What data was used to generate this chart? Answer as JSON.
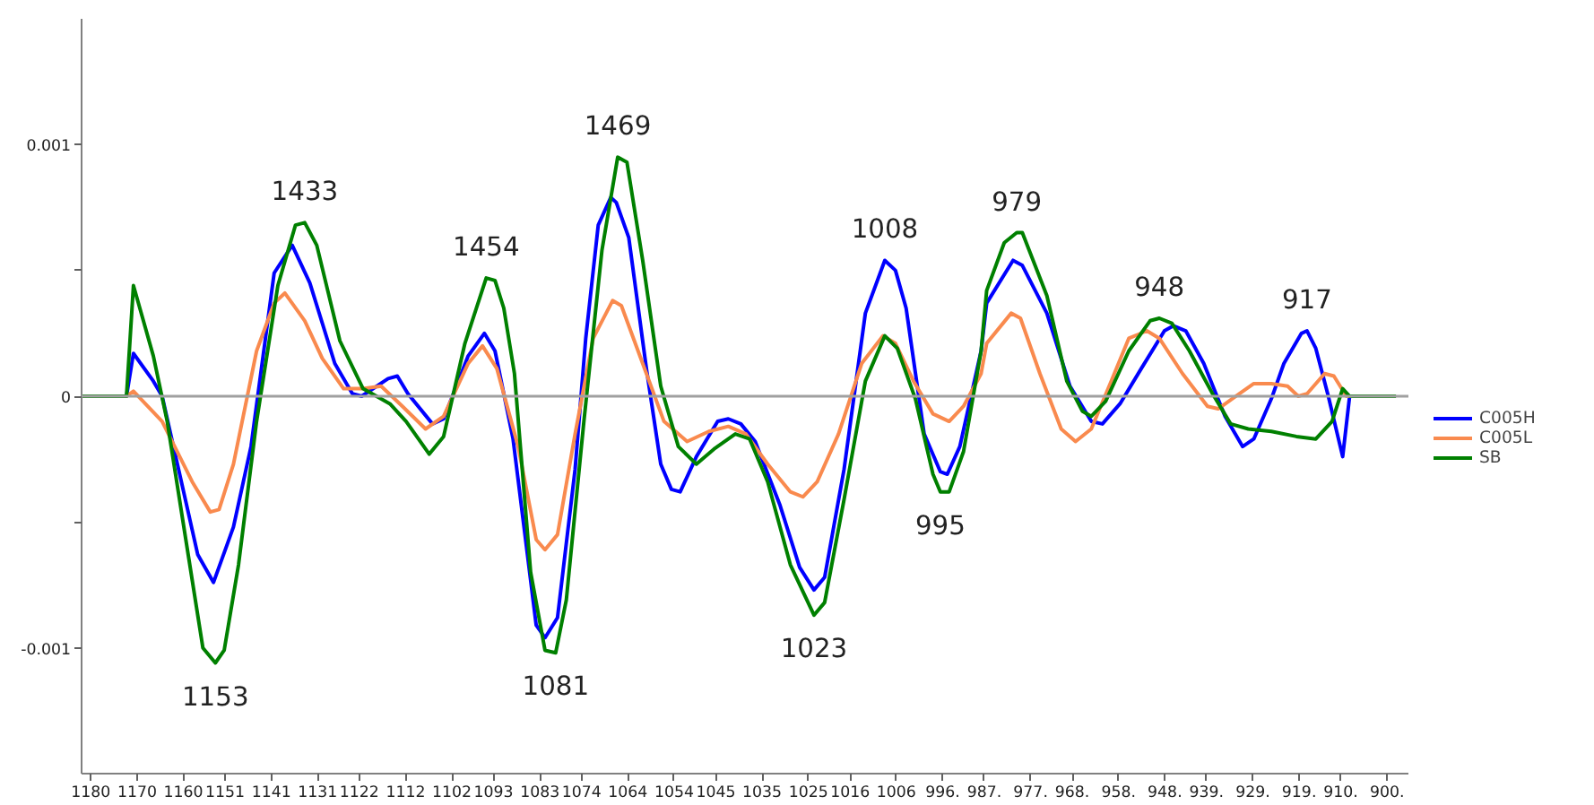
{
  "chart_data": {
    "type": "line",
    "xlim": [
      1182,
      895.4
    ],
    "ylim": [
      -0.0015,
      0.0015
    ],
    "xticks": [
      1180,
      1170,
      1160,
      1151,
      1141,
      1131,
      1122,
      1112,
      1102,
      1093,
      1083,
      1074,
      1064,
      1054,
      1045,
      1035,
      1025,
      1016,
      1006,
      {
        "value": 996,
        "label": "996."
      },
      {
        "value": 987,
        "label": "987."
      },
      {
        "value": 977,
        "label": "977."
      },
      {
        "value": 968,
        "label": "968."
      },
      {
        "value": 958,
        "label": "958."
      },
      {
        "value": 948,
        "label": "948."
      },
      {
        "value": 939,
        "label": "939."
      },
      {
        "value": 929,
        "label": "929."
      },
      {
        "value": 919,
        "label": "919."
      },
      {
        "value": 910,
        "label": "910."
      },
      {
        "value": 900,
        "label": "900."
      }
    ],
    "yticks": [
      -0.001,
      {
        "value": -0.0005,
        "label": null
      },
      0,
      {
        "value": 0.0005,
        "label": null
      },
      0.001
    ],
    "grid": false,
    "legend": "right",
    "marker": "none",
    "line_style": "solid",
    "ref_lines": [
      {
        "axis": "y",
        "value": 0,
        "color": "#a0a0a0"
      }
    ],
    "annotations": [
      {
        "text": "1433",
        "x": 1133.8,
        "y": 0.00069
      },
      {
        "text": "1153",
        "x": 1153.1,
        "y": -0.00106
      },
      {
        "text": "1454",
        "x": 1094.6,
        "y": 0.00047
      },
      {
        "text": "1081",
        "x": 1079.6,
        "y": -0.00102
      },
      {
        "text": "1469",
        "x": 1066.2,
        "y": 0.00095
      },
      {
        "text": "1023",
        "x": 1023.8,
        "y": -0.00087
      },
      {
        "text": "1008",
        "x": 1008.5,
        "y": 0.00054
      },
      {
        "text": "995",
        "x": 996.5,
        "y": -0.00038
      },
      {
        "text": "979",
        "x": 980.0,
        "y": 0.00065
      },
      {
        "text": "948",
        "x": 949.2,
        "y": 0.00031
      },
      {
        "text": "917",
        "x": 917.3,
        "y": 0.00026
      }
    ],
    "series": [
      {
        "name": "C005H",
        "color": "#0000ff",
        "x": [
          1181.9,
          1172.3,
          1170.8,
          1166.5,
          1164.6,
          1156.9,
          1153.5,
          1149.2,
          1145.4,
          1140.4,
          1136.5,
          1132.7,
          1127.3,
          1123.5,
          1121.5,
          1115.8,
          1113.8,
          1111.5,
          1106.2,
          1103.8,
          1098.5,
          1095.0,
          1092.7,
          1088.8,
          1083.8,
          1081.9,
          1079.2,
          1075.4,
          1073.1,
          1070.4,
          1067.7,
          1066.5,
          1063.8,
          1060.0,
          1056.9,
          1054.6,
          1052.7,
          1049.2,
          1044.6,
          1042.3,
          1039.6,
          1036.5,
          1031.2,
          1026.9,
          1023.8,
          1021.5,
          1017.3,
          1012.7,
          1008.5,
          1006.2,
          1003.9,
          1000.0,
          996.5,
          995.0,
          992.3,
          987.7,
          986.5,
          980.8,
          978.8,
          973.5,
          968.5,
          963.9,
          961.5,
          957.7,
          953.1,
          948.1,
          946.2,
          943.5,
          939.6,
          935.0,
          931.2,
          928.8,
          925.0,
          922.3,
          918.5,
          917.3,
          915.4,
          912.7,
          909.6,
          908.1,
          898.1
        ],
        "values": [
          0,
          0,
          0.00017,
          6e-05,
          0,
          -0.00063,
          -0.00074,
          -0.00052,
          -0.0002,
          0.00049,
          0.0006,
          0.00045,
          0.00013,
          1e-05,
          0,
          7e-05,
          8e-05,
          1e-05,
          -0.00011,
          -9e-05,
          0.00016,
          0.00025,
          0.00018,
          -0.00017,
          -0.00091,
          -0.00096,
          -0.00088,
          -0.00029,
          0.00023,
          0.00068,
          0.00079,
          0.00077,
          0.00063,
          0.00011,
          -0.00027,
          -0.00037,
          -0.00038,
          -0.00024,
          -0.0001,
          -9e-05,
          -0.00011,
          -0.00018,
          -0.00043,
          -0.00068,
          -0.00077,
          -0.00072,
          -0.00029,
          0.00033,
          0.00054,
          0.0005,
          0.00035,
          -0.00015,
          -0.0003,
          -0.00031,
          -0.0002,
          0.00018,
          0.00037,
          0.00054,
          0.00052,
          0.00033,
          4e-05,
          -0.0001,
          -0.00011,
          -3e-05,
          0.00011,
          0.00026,
          0.00028,
          0.00026,
          0.00013,
          -8e-05,
          -0.0002,
          -0.00017,
          -1e-05,
          0.00013,
          0.00025,
          0.00026,
          0.00019,
          0,
          -0.00024,
          0,
          0
        ]
      },
      {
        "name": "C005L",
        "color": "#f98a4e",
        "x": [
          1181.9,
          1172.3,
          1170.8,
          1164.6,
          1158.1,
          1154.2,
          1152.3,
          1149.2,
          1144.2,
          1140.4,
          1138.1,
          1133.8,
          1130.0,
          1125.4,
          1121.2,
          1117.3,
          1112.7,
          1107.7,
          1103.8,
          1098.5,
          1095.4,
          1092.3,
          1087.7,
          1083.8,
          1081.9,
          1079.2,
          1075.4,
          1071.5,
          1067.3,
          1065.4,
          1060.8,
          1056.2,
          1051.2,
          1046.5,
          1042.3,
          1038.5,
          1033.8,
          1028.9,
          1026.2,
          1023.1,
          1018.5,
          1013.5,
          1008.9,
          1006.2,
          1002.3,
          998.1,
          994.6,
          991.5,
          987.7,
          986.5,
          981.2,
          979.2,
          975.0,
          970.4,
          967.3,
          963.9,
          959.6,
          955.8,
          951.9,
          949.2,
          944.2,
          938.8,
          936.5,
          931.9,
          928.8,
          925.0,
          921.5,
          919.2,
          917.3,
          913.5,
          911.5,
          908.8,
          898.1
        ],
        "values": [
          0,
          0,
          2e-05,
          -0.0001,
          -0.00034,
          -0.00046,
          -0.00045,
          -0.00027,
          0.00018,
          0.00037,
          0.00041,
          0.0003,
          0.00015,
          3e-05,
          3e-05,
          4e-05,
          -4e-05,
          -0.00013,
          -8e-05,
          0.00013,
          0.0002,
          0.00011,
          -0.0002,
          -0.00057,
          -0.00061,
          -0.00055,
          -0.00015,
          0.00023,
          0.00038,
          0.00036,
          0.00013,
          -0.0001,
          -0.00018,
          -0.00014,
          -0.00012,
          -0.00015,
          -0.00027,
          -0.00038,
          -0.0004,
          -0.00034,
          -0.00015,
          0.00013,
          0.00024,
          0.00021,
          6e-05,
          -7e-05,
          -0.0001,
          -4e-05,
          9e-05,
          0.00021,
          0.00033,
          0.00031,
          9e-05,
          -0.00013,
          -0.00018,
          -0.00013,
          6e-05,
          0.00023,
          0.00026,
          0.00023,
          9e-05,
          -4e-05,
          -5e-05,
          1e-05,
          5e-05,
          5e-05,
          4e-05,
          0,
          1e-05,
          9e-05,
          8e-05,
          0,
          0
        ]
      },
      {
        "name": "SB",
        "color": "#008000",
        "x": [
          1181.9,
          1172.3,
          1170.8,
          1166.5,
          1163.5,
          1158.8,
          1155.8,
          1153.1,
          1151.2,
          1148.1,
          1144.2,
          1139.6,
          1135.8,
          1133.8,
          1131.2,
          1126.2,
          1121.2,
          1115.4,
          1111.9,
          1106.9,
          1103.8,
          1099.2,
          1094.6,
          1092.7,
          1090.8,
          1088.5,
          1085.0,
          1081.9,
          1079.6,
          1077.3,
          1073.5,
          1069.6,
          1066.2,
          1064.2,
          1060.8,
          1056.9,
          1053.1,
          1049.2,
          1045.4,
          1040.8,
          1037.7,
          1033.8,
          1028.9,
          1023.8,
          1021.5,
          1017.3,
          1012.7,
          1008.5,
          1005.8,
          1001.9,
          998.1,
          996.5,
          994.6,
          991.5,
          987.7,
          986.5,
          982.7,
          980.0,
          978.8,
          973.5,
          969.2,
          965.8,
          963.9,
          960.8,
          955.8,
          951.2,
          949.2,
          946.5,
          942.7,
          937.7,
          933.8,
          930.0,
          925.0,
          919.6,
          915.4,
          911.9,
          909.6,
          908.1,
          898.1
        ],
        "values": [
          0,
          0,
          0.00044,
          0.00016,
          -0.0001,
          -0.00065,
          -0.001,
          -0.00106,
          -0.00101,
          -0.00067,
          -0.0001,
          0.00044,
          0.00068,
          0.00069,
          0.0006,
          0.00022,
          3e-05,
          -3e-05,
          -0.0001,
          -0.00023,
          -0.00016,
          0.00021,
          0.00047,
          0.00046,
          0.00035,
          9e-05,
          -0.0007,
          -0.00101,
          -0.00102,
          -0.00081,
          -0.0001,
          0.00058,
          0.00095,
          0.00093,
          0.00054,
          4e-05,
          -0.0002,
          -0.00027,
          -0.00021,
          -0.00015,
          -0.00017,
          -0.00034,
          -0.00067,
          -0.00087,
          -0.00082,
          -0.00041,
          6e-05,
          0.00024,
          0.00019,
          -1e-05,
          -0.00031,
          -0.00038,
          -0.00038,
          -0.00022,
          0.00018,
          0.00042,
          0.00061,
          0.00065,
          0.00065,
          0.0004,
          6e-05,
          -6e-05,
          -8e-05,
          -2e-05,
          0.00018,
          0.0003,
          0.00031,
          0.00029,
          0.00018,
          1e-05,
          -0.00011,
          -0.00013,
          -0.00014,
          -0.00016,
          -0.00017,
          -0.0001,
          3e-05,
          0,
          0
        ]
      }
    ]
  }
}
